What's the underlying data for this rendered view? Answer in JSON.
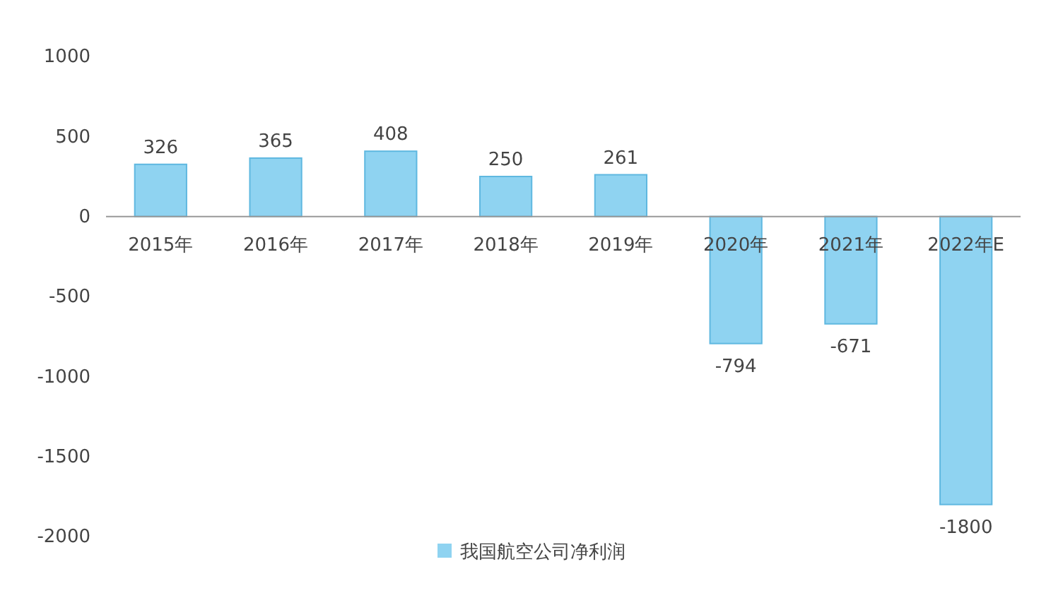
{
  "chart_data": {
    "type": "bar",
    "categories": [
      "2015年",
      "2016年",
      "2017年",
      "2018年",
      "2019年",
      "2020年",
      "2021年",
      "2022年E"
    ],
    "series": [
      {
        "name": "我国航空公司净利润",
        "color": "#8fd3f1",
        "values": [
          326,
          365,
          408,
          250,
          261,
          -794,
          -671,
          -1800
        ]
      }
    ],
    "ylim": [
      -2000,
      1000
    ],
    "yticks": [
      -2000,
      -1500,
      -1000,
      -500,
      0,
      500,
      1000
    ],
    "data_labels": true,
    "legend": "bottom",
    "grid": false
  }
}
